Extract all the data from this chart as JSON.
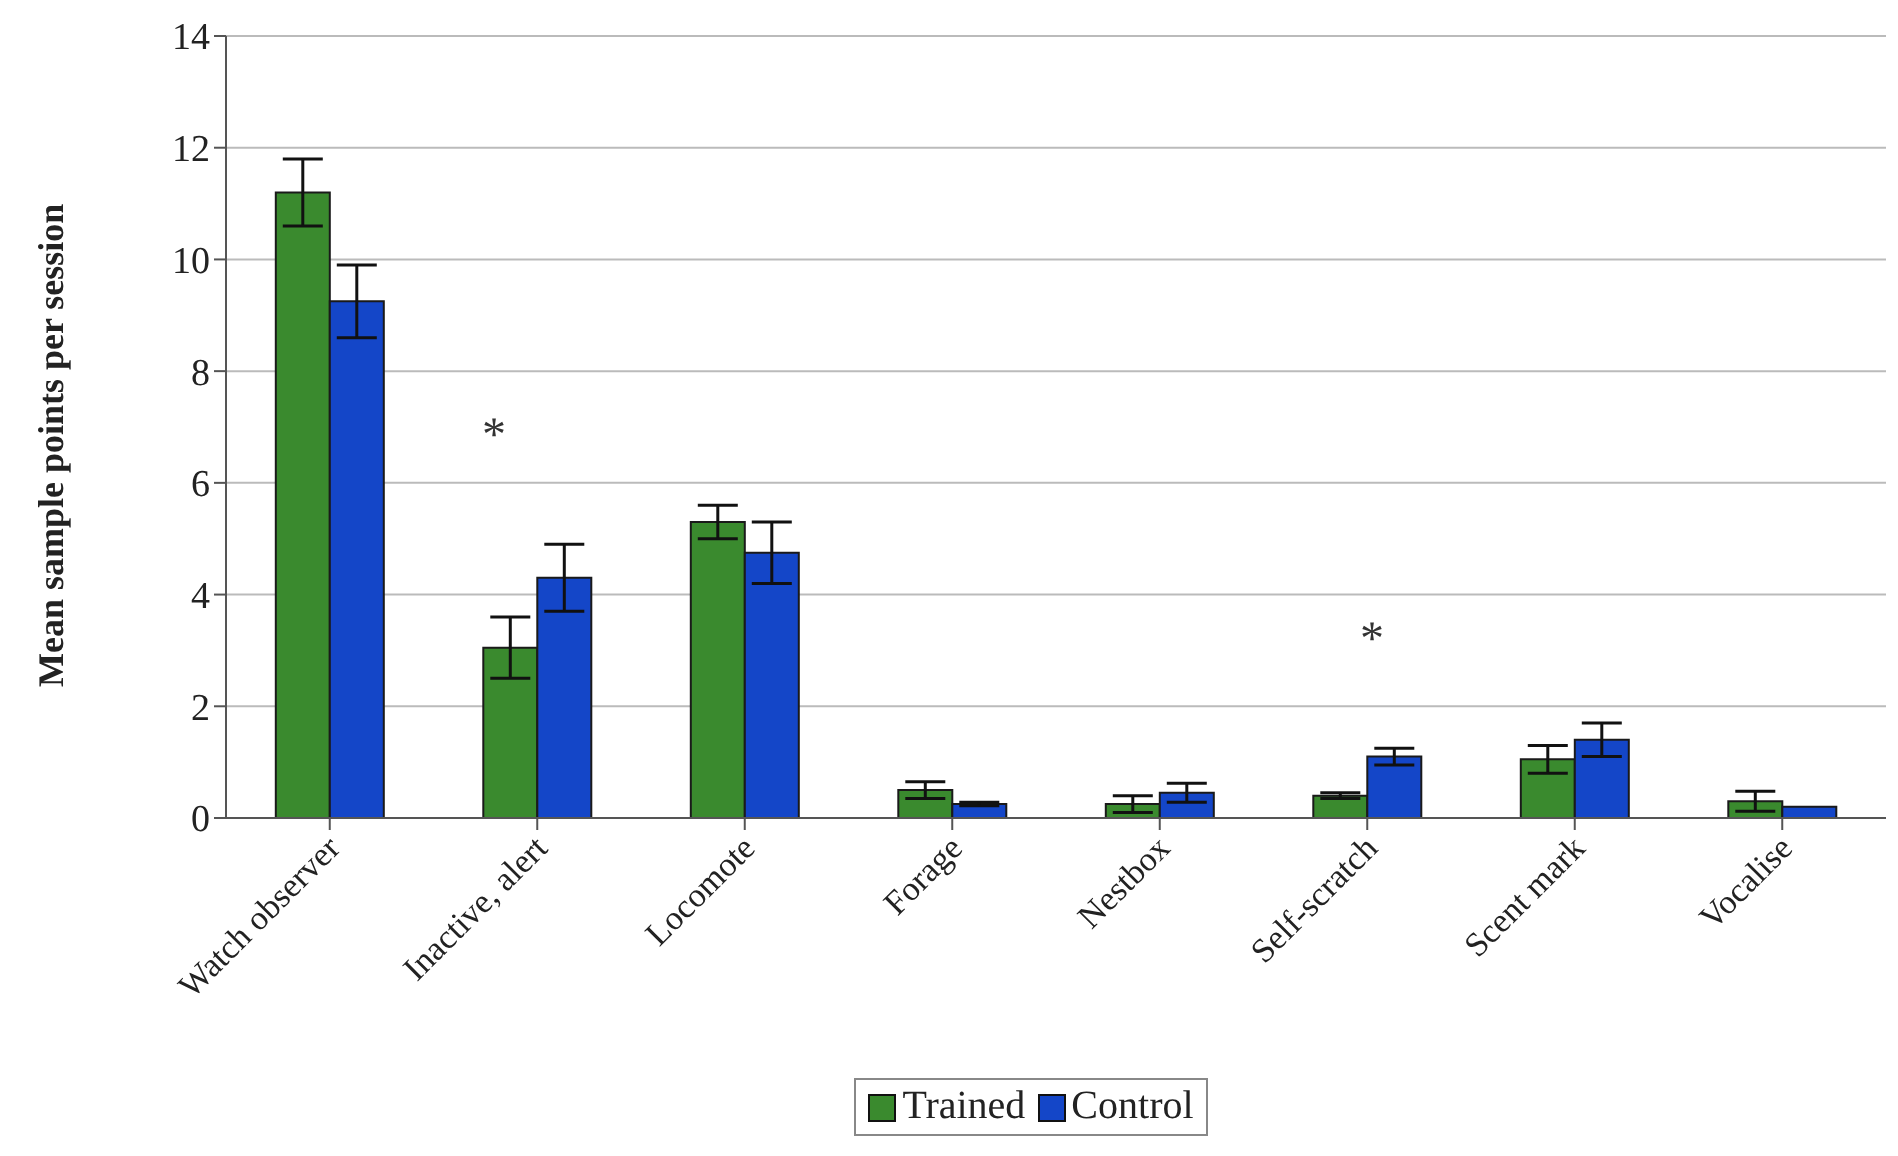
{
  "chart_data": {
    "type": "bar",
    "ylabel": "Mean sample points per session",
    "categories": [
      "Watch observer",
      "Inactive, alert",
      "Locomote",
      "Forage",
      "Nestbox",
      "Self-scratch",
      "Scent mark",
      "Vocalise"
    ],
    "series": [
      {
        "name": "Trained",
        "color": "#3a8a2e",
        "values": [
          11.2,
          3.05,
          5.3,
          0.5,
          0.25,
          0.4,
          1.05,
          0.3
        ],
        "errors": [
          0.6,
          0.55,
          0.3,
          0.15,
          0.15,
          0.05,
          0.25,
          0.18
        ]
      },
      {
        "name": "Control",
        "color": "#1446c8",
        "values": [
          9.25,
          4.3,
          4.75,
          0.25,
          0.45,
          1.1,
          1.4,
          0.2
        ],
        "errors": [
          0.65,
          0.6,
          0.55,
          0.03,
          0.17,
          0.15,
          0.3,
          null
        ]
      }
    ],
    "ylim": [
      0,
      14
    ],
    "yticks": [
      0,
      2,
      4,
      6,
      8,
      10,
      12,
      14
    ],
    "grid": "y",
    "legend": "bottom",
    "annotations": [
      "*",
      "*"
    ]
  }
}
